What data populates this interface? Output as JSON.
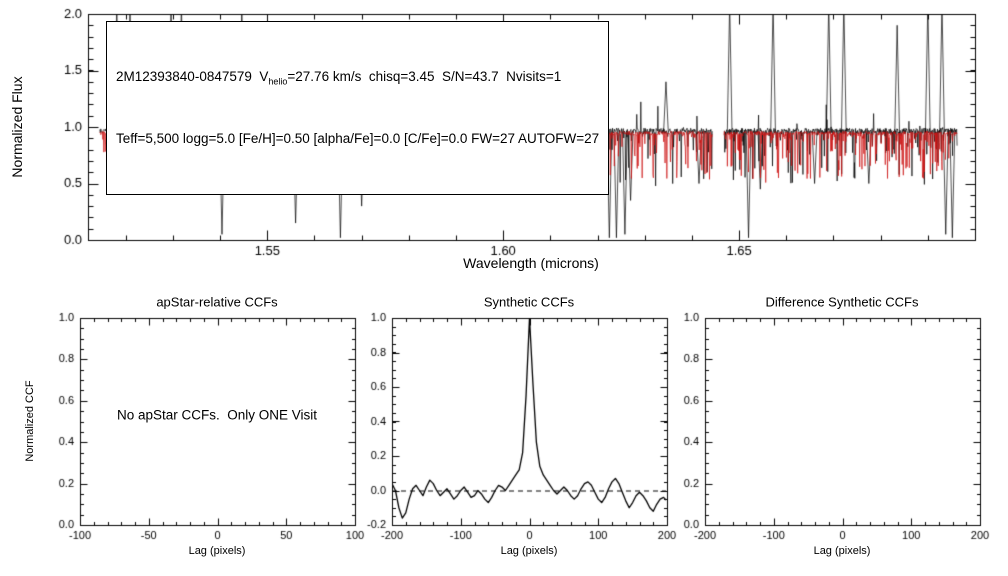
{
  "figure": {
    "background": "#ffffff",
    "frame_color": "#000000"
  },
  "chart_data": [
    {
      "id": "visit_spectrum",
      "type": "line",
      "header": {
        "line1_prefix": "2M12393840-0847579  V",
        "line1_sub": "helio",
        "line1_suffix": "=27.76 km/s  chisq=3.45  S/N=43.7  Nvisits=1",
        "line2": "Teff=5,500 logg=5.0 [Fe/H]=0.50 [alpha/Fe]=0.0 [C/Fe]=0.0 FW=27 AUTOFW=27"
      },
      "xlabel": "Wavelength (microns)",
      "ylabel": "Normalized Flux",
      "xlim": [
        1.512,
        1.7
      ],
      "ylim": [
        0.0,
        2.0
      ],
      "xticks": [
        1.55,
        1.6,
        1.65
      ],
      "xtick_labels": [
        "1.55",
        "1.60",
        "1.65"
      ],
      "x_minor_step": 0.01,
      "yticks": [
        0.0,
        0.5,
        1.0,
        1.5,
        2.0
      ],
      "ytick_labels": [
        "0.0",
        "0.5",
        "1.0",
        "1.5",
        "2.0"
      ],
      "y_minor_step": 0.1,
      "series": [
        {
          "name": "observed spectrum",
          "color": "#000000"
        },
        {
          "name": "synthetic best-fit spectrum",
          "color": "#cc1111"
        }
      ],
      "segments": [
        [
          1.5145,
          1.5808
        ],
        [
          1.5853,
          1.6443
        ],
        [
          1.6468,
          1.6962
        ]
      ],
      "baseline_flux": 0.95,
      "up_spikes": [
        [
          1.5181,
          2.1
        ],
        [
          1.5209,
          2.1
        ],
        [
          1.5296,
          2.1
        ],
        [
          1.5318,
          2.1
        ],
        [
          1.5339,
          1.8
        ],
        [
          1.5446,
          2.1
        ],
        [
          1.5536,
          1.3
        ],
        [
          1.5675,
          1.35
        ],
        [
          1.5763,
          1.5
        ],
        [
          1.5788,
          1.4
        ],
        [
          1.5872,
          1.75
        ],
        [
          1.604,
          1.9
        ],
        [
          1.6345,
          1.4
        ],
        [
          1.648,
          2.1
        ],
        [
          1.6572,
          2.1
        ],
        [
          1.669,
          2.1
        ],
        [
          1.6722,
          2.1
        ],
        [
          1.6835,
          1.9
        ],
        [
          1.69,
          2.1
        ],
        [
          1.693,
          2.1
        ]
      ],
      "down_spikes": [
        [
          1.5252,
          0.45
        ],
        [
          1.5404,
          0.05
        ],
        [
          1.5475,
          0.55
        ],
        [
          1.556,
          0.15
        ],
        [
          1.5655,
          0.02
        ],
        [
          1.57,
          0.3
        ],
        [
          1.5745,
          0.5
        ],
        [
          1.596,
          0.45
        ],
        [
          1.608,
          0.5
        ],
        [
          1.6225,
          0.02
        ],
        [
          1.624,
          0.02
        ],
        [
          1.6258,
          0.05
        ],
        [
          1.627,
          0.35
        ],
        [
          1.6415,
          0.5
        ],
        [
          1.652,
          0.02
        ],
        [
          1.6545,
          0.45
        ],
        [
          1.666,
          0.5
        ],
        [
          1.6775,
          0.5
        ],
        [
          1.6938,
          0.05
        ],
        [
          1.6952,
          0.02
        ]
      ]
    },
    {
      "id": "apstar_ccf",
      "type": "line",
      "title": "apStar-relative CCFs",
      "xlabel": "Lag (pixels)",
      "ylabel": "Normalized CCF",
      "xlim": [
        -100,
        100
      ],
      "ylim": [
        0.0,
        1.0
      ],
      "xticks": [
        -100,
        -50,
        0,
        50,
        100
      ],
      "xtick_labels": [
        "-100",
        "-50",
        "0",
        "50",
        "100"
      ],
      "x_minor_step": 10,
      "yticks": [
        0.0,
        0.2,
        0.4,
        0.6,
        0.8,
        1.0
      ],
      "ytick_labels": [
        "0.0",
        "0.2",
        "0.4",
        "0.6",
        "0.8",
        "1.0"
      ],
      "y_minor_step": 0.05,
      "annotation": "No apStar CCFs.  Only ONE Visit",
      "y": []
    },
    {
      "id": "synthetic_ccf",
      "type": "line",
      "title": "Synthetic CCFs",
      "xlabel": "Lag (pixels)",
      "ylabel": "",
      "xlim": [
        -200,
        200
      ],
      "ylim": [
        -0.2,
        1.0
      ],
      "xticks": [
        -200,
        -100,
        0,
        100,
        200
      ],
      "xtick_labels": [
        "-200",
        "-100",
        "0",
        "100",
        "200"
      ],
      "x_minor_step": 20,
      "yticks": [
        -0.2,
        0.0,
        0.2,
        0.4,
        0.6,
        0.8,
        1.0
      ],
      "ytick_labels": [
        "-0.2",
        "0.0",
        "0.2",
        "0.4",
        "0.6",
        "0.8",
        "1.0"
      ],
      "y_minor_step": 0.05,
      "zero_line": "dashed",
      "x_start": -200,
      "x_step": 5,
      "y": [
        0.04,
        0.0,
        -0.1,
        -0.16,
        -0.13,
        -0.05,
        0.01,
        0.03,
        0.0,
        -0.03,
        0.02,
        0.06,
        0.04,
        0.0,
        -0.03,
        -0.01,
        0.01,
        -0.02,
        -0.05,
        -0.03,
        0.0,
        0.02,
        -0.01,
        -0.04,
        -0.03,
        0.0,
        -0.02,
        -0.05,
        -0.07,
        -0.04,
        0.0,
        0.03,
        0.02,
        0.0,
        0.03,
        0.06,
        0.09,
        0.12,
        0.22,
        0.55,
        1.0,
        0.62,
        0.28,
        0.14,
        0.09,
        0.06,
        0.03,
        0.0,
        -0.02,
        0.0,
        0.02,
        0.0,
        -0.03,
        -0.05,
        -0.03,
        0.01,
        0.04,
        0.05,
        0.03,
        -0.01,
        -0.05,
        -0.07,
        -0.04,
        0.01,
        0.05,
        0.07,
        0.04,
        -0.01,
        -0.06,
        -0.1,
        -0.07,
        -0.03,
        -0.01,
        -0.03,
        -0.06,
        -0.1,
        -0.12,
        -0.08,
        -0.05,
        -0.04,
        -0.06
      ]
    },
    {
      "id": "difference_synthetic_ccf",
      "type": "line",
      "title": "Difference Synthetic CCFs",
      "xlabel": "Lag (pixels)",
      "ylabel": "",
      "xlim": [
        -200,
        200
      ],
      "ylim": [
        0.0,
        1.0
      ],
      "xticks": [
        -200,
        -100,
        0,
        100,
        200
      ],
      "xtick_labels": [
        "-200",
        "-100",
        "0",
        "100",
        "200"
      ],
      "x_minor_step": 20,
      "yticks": [
        0.0,
        0.2,
        0.4,
        0.6,
        0.8,
        1.0
      ],
      "ytick_labels": [
        "0.0",
        "0.2",
        "0.4",
        "0.6",
        "0.8",
        "1.0"
      ],
      "y_minor_step": 0.05,
      "y": []
    }
  ]
}
